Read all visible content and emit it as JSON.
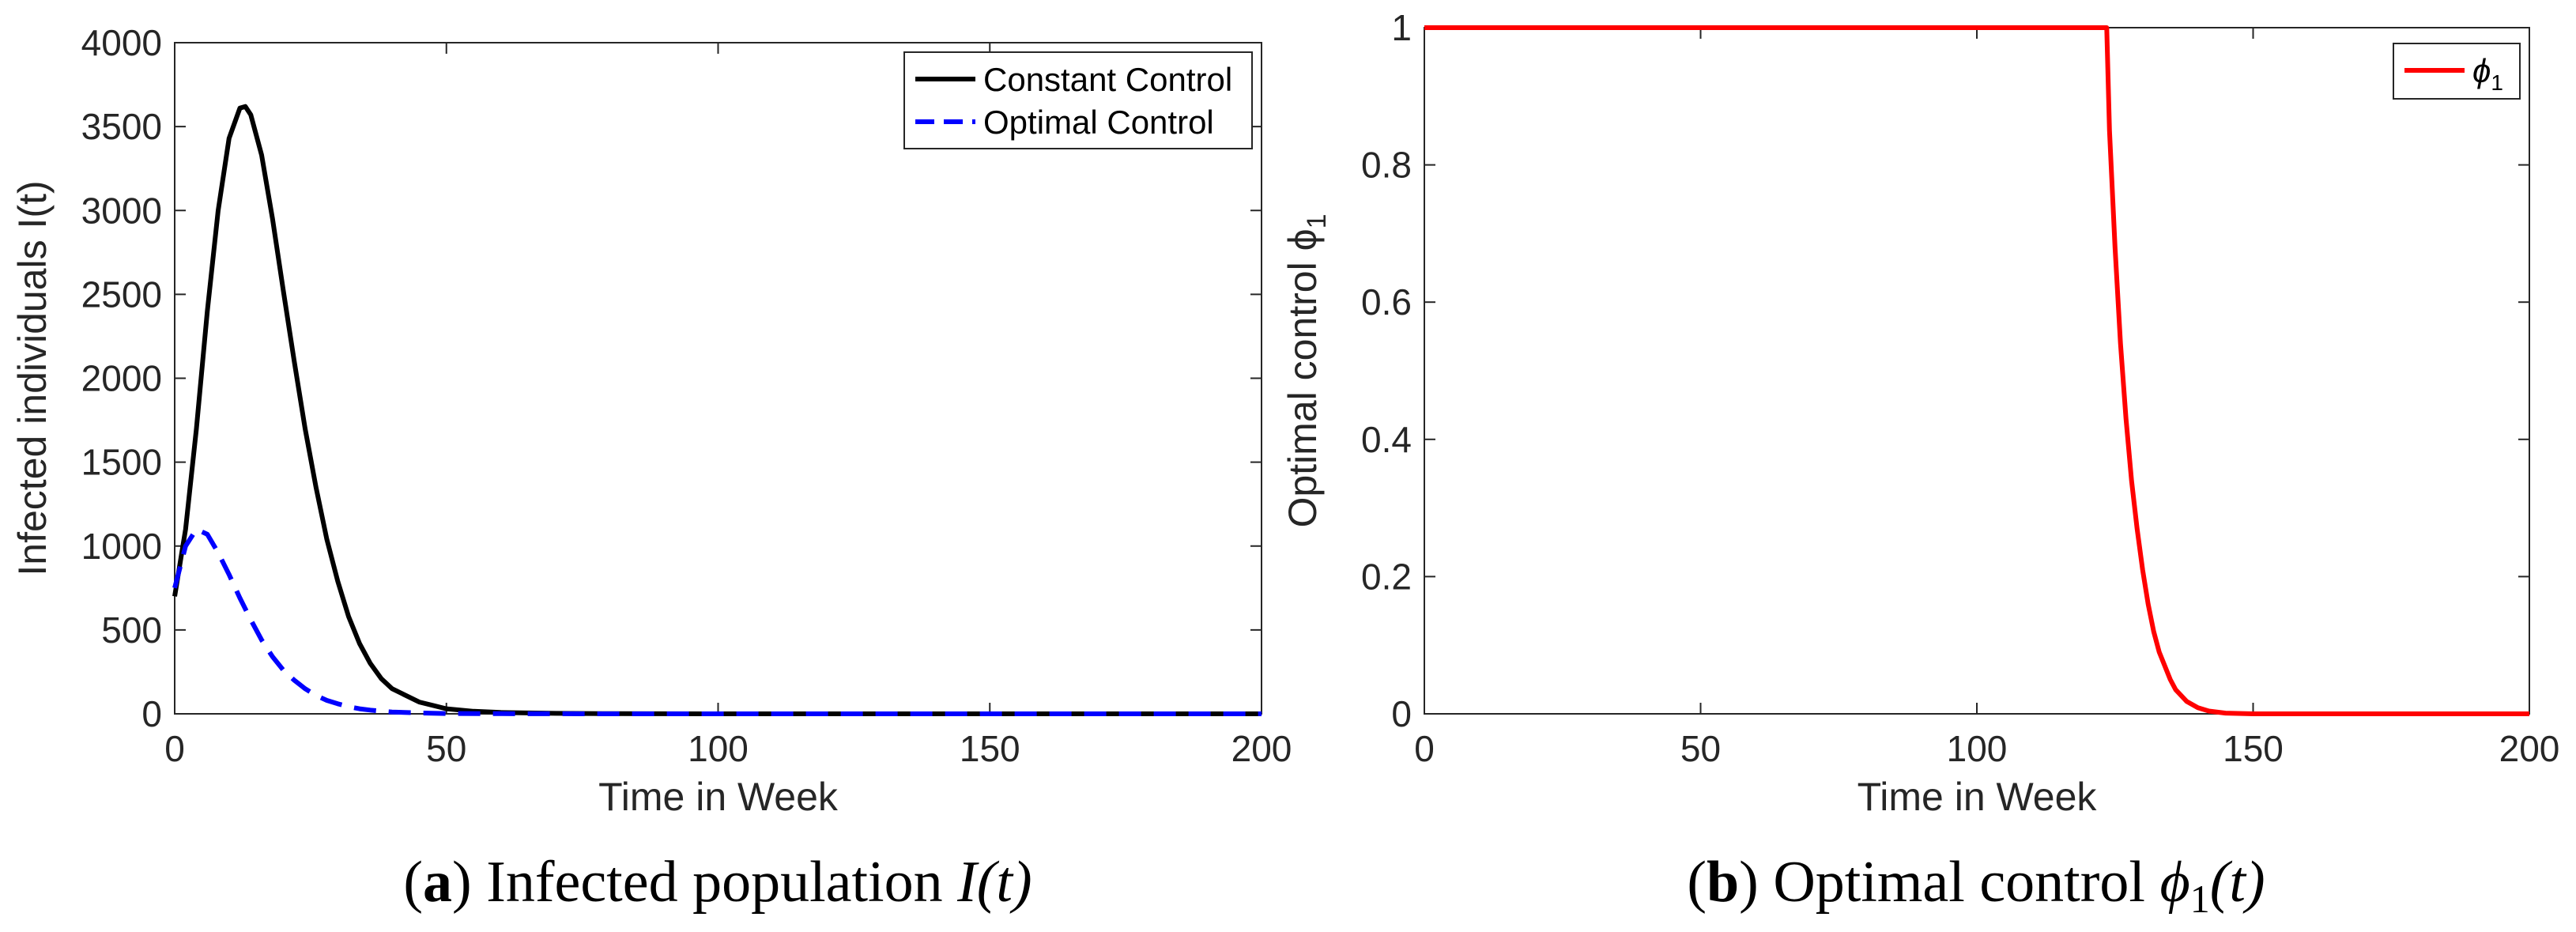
{
  "chart_data": [
    {
      "type": "line",
      "panel_label": "a",
      "caption_text": "Infected population ",
      "caption_math": "I(t)",
      "xlabel": "Time in Week",
      "ylabel": "Infected individuals I(t)",
      "xlim": [
        0,
        200
      ],
      "ylim": [
        0,
        4000
      ],
      "xticks": [
        "0",
        "50",
        "100",
        "150",
        "200"
      ],
      "yticks": [
        "0",
        "500",
        "1000",
        "1500",
        "2000",
        "2500",
        "3000",
        "3500",
        "4000"
      ],
      "grid": false,
      "legend_position": "top-right",
      "series": [
        {
          "name": "Constant Control",
          "color": "#000000",
          "style": "solid",
          "x": [
            0,
            2,
            4,
            6,
            8,
            10,
            12,
            13,
            14,
            16,
            18,
            20,
            22,
            24,
            26,
            28,
            30,
            32,
            34,
            36,
            38,
            40,
            45,
            50,
            55,
            60,
            70,
            80,
            100,
            150,
            200
          ],
          "y": [
            700,
            1100,
            1700,
            2400,
            3000,
            3430,
            3610,
            3620,
            3570,
            3330,
            2950,
            2520,
            2100,
            1700,
            1350,
            1040,
            790,
            580,
            420,
            300,
            210,
            150,
            70,
            30,
            15,
            8,
            3,
            1,
            0,
            0,
            0
          ]
        },
        {
          "name": "Optimal Control",
          "color": "#0000ff",
          "style": "dashed",
          "x": [
            0,
            2,
            4,
            6,
            8,
            10,
            12,
            14,
            16,
            18,
            20,
            22,
            24,
            26,
            28,
            30,
            32,
            34,
            36,
            38,
            40,
            45,
            50,
            60,
            80,
            100,
            150,
            200
          ],
          "y": [
            750,
            1000,
            1100,
            1070,
            960,
            830,
            690,
            560,
            440,
            340,
            260,
            200,
            150,
            110,
            80,
            60,
            43,
            30,
            22,
            16,
            11,
            5,
            2,
            1,
            0,
            0,
            0,
            0
          ]
        }
      ]
    },
    {
      "type": "line",
      "panel_label": "b",
      "caption_text": "Optimal control ",
      "caption_math": "ϕ",
      "caption_sub": "1",
      "caption_after": "(t)",
      "xlabel": "Time in Week",
      "ylabel": "Optimal  control  ϕ",
      "ylabel_sub": "1",
      "xlim": [
        0,
        200
      ],
      "ylim": [
        0,
        1
      ],
      "xticks": [
        "0",
        "50",
        "100",
        "150",
        "200"
      ],
      "yticks": [
        "0",
        "0.2",
        "0.4",
        "0.6",
        "0.8",
        "1"
      ],
      "grid": false,
      "legend_position": "top-right",
      "series": [
        {
          "name": "ϕ",
          "name_sub": "1",
          "color": "#ff0000",
          "style": "solid",
          "x": [
            0,
            100,
            123.5,
            124,
            125,
            126,
            127,
            128,
            129,
            130,
            131,
            132,
            133,
            134,
            135,
            136,
            138,
            140,
            142,
            145,
            150,
            200
          ],
          "y": [
            1,
            1,
            1,
            0.85,
            0.68,
            0.54,
            0.43,
            0.34,
            0.27,
            0.21,
            0.16,
            0.12,
            0.09,
            0.07,
            0.05,
            0.035,
            0.018,
            0.009,
            0.004,
            0.001,
            0,
            0
          ]
        }
      ]
    }
  ]
}
